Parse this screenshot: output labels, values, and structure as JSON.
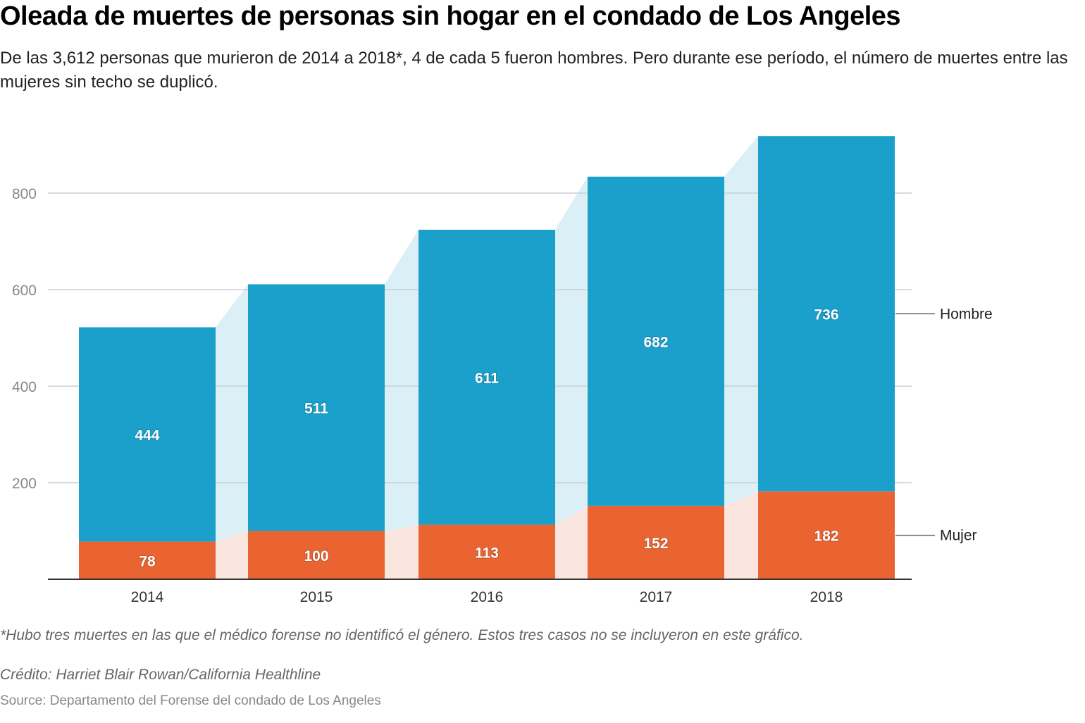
{
  "header": {
    "title": "Oleada de muertes de personas sin hogar en el condado de Los Angeles",
    "subtitle": "De las 3,612 personas que murieron de 2014 a 2018*, 4 de cada 5 fueron hombres. Pero durante ese período, el número de muertes entre las mujeres sin techo se duplicó."
  },
  "footer": {
    "note": "*Hubo tres muertes en las que el médico forense no identificó el género. Estos tres casos no se incluyeron en este gráfico.",
    "credit": "Crédito: Harriet Blair Rowan/California Healthline",
    "source": "Source: Departamento del Forense del condado de Los Angeles"
  },
  "chart_data": {
    "type": "bar",
    "stacked": true,
    "title": "Oleada de muertes de personas sin hogar en el condado de Los Angeles",
    "xlabel": "",
    "ylabel": "",
    "categories": [
      "2014",
      "2015",
      "2016",
      "2017",
      "2018"
    ],
    "series": [
      {
        "name": "Mujer",
        "values": [
          78,
          100,
          113,
          152,
          182
        ],
        "color": "#e96431",
        "area_color": "#fbe5df"
      },
      {
        "name": "Hombre",
        "values": [
          444,
          511,
          611,
          682,
          736
        ],
        "color": "#1aa0ca",
        "area_color": "#dbeff7"
      }
    ],
    "yticks": [
      200,
      400,
      600,
      800
    ],
    "ylim": [
      0,
      920
    ],
    "grid": true,
    "legend": "right, direct labels"
  }
}
